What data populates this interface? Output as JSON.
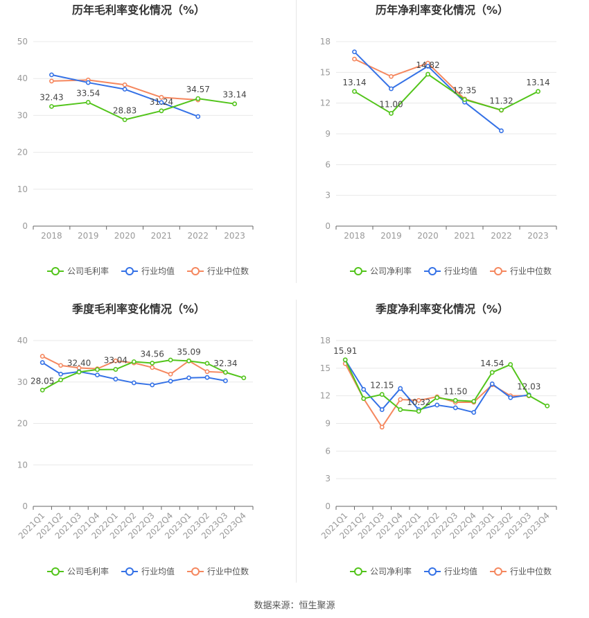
{
  "footer": {
    "source": "数据来源：恒生聚源"
  },
  "colors": {
    "company": "#52c41a",
    "industry_avg": "#3471e6",
    "industry_median": "#f5875e",
    "axis": "#666666",
    "label": "#999999",
    "grid": "#e8e8e8",
    "title": "#333333"
  },
  "chart_data": [
    {
      "type": "line",
      "title": "历年毛利率变化情况（%）",
      "categories": [
        "2018",
        "2019",
        "2020",
        "2021",
        "2022",
        "2023"
      ],
      "ylim": [
        0,
        50
      ],
      "yticks": [
        0,
        10,
        20,
        30,
        40,
        50
      ],
      "xlabel": "",
      "ylabel": "",
      "series": [
        {
          "name": "公司毛利率",
          "role": "company",
          "values": [
            32.43,
            33.54,
            28.83,
            31.24,
            34.57,
            33.14
          ],
          "labels": [
            "32.43",
            "33.54",
            "28.83",
            "31.24",
            "34.57",
            "33.14"
          ]
        },
        {
          "name": "行业均值",
          "role": "industry_avg",
          "values": [
            41.0,
            38.9,
            37.1,
            33.5,
            29.7,
            null
          ]
        },
        {
          "name": "行业中位数",
          "role": "industry_median",
          "values": [
            39.3,
            39.6,
            38.3,
            34.9,
            34.2,
            null
          ]
        }
      ],
      "legend": "bottom"
    },
    {
      "type": "line",
      "title": "历年净利率变化情况（%）",
      "categories": [
        "2018",
        "2019",
        "2020",
        "2021",
        "2022",
        "2023"
      ],
      "ylim": [
        0,
        18
      ],
      "yticks": [
        0,
        3,
        6,
        9,
        12,
        15,
        18
      ],
      "xlabel": "",
      "ylabel": "",
      "series": [
        {
          "name": "公司净利率",
          "role": "company",
          "values": [
            13.14,
            11.0,
            14.82,
            12.35,
            11.32,
            13.14
          ],
          "labels": [
            "13.14",
            "11.00",
            "14.82",
            "12.35",
            "11.32",
            "13.14"
          ]
        },
        {
          "name": "行业均值",
          "role": "industry_avg",
          "values": [
            17.0,
            13.4,
            15.6,
            12.1,
            9.3,
            null
          ]
        },
        {
          "name": "行业中位数",
          "role": "industry_median",
          "values": [
            16.3,
            14.6,
            15.9,
            12.4,
            11.3,
            null
          ]
        }
      ],
      "legend": "bottom"
    },
    {
      "type": "line",
      "title": "季度毛利率变化情况（%）",
      "categories": [
        "2021Q1",
        "2021Q2",
        "2021Q3",
        "2021Q4",
        "2022Q1",
        "2022Q2",
        "2022Q3",
        "2022Q4",
        "2023Q1",
        "2023Q2",
        "2023Q3",
        "2023Q4"
      ],
      "ylim": [
        0,
        40
      ],
      "yticks": [
        0,
        10,
        20,
        30,
        40
      ],
      "xlabel": "",
      "ylabel": "",
      "series": [
        {
          "name": "公司毛利率",
          "role": "company",
          "values": [
            28.05,
            30.5,
            32.4,
            33.0,
            33.04,
            34.9,
            34.56,
            35.3,
            35.09,
            34.5,
            32.34,
            31.0
          ],
          "labels": [
            "28.05",
            "",
            "32.40",
            "",
            "33.04",
            "",
            "34.56",
            "",
            "35.09",
            "",
            "32.34",
            ""
          ]
        },
        {
          "name": "行业均值",
          "role": "industry_avg",
          "values": [
            34.7,
            31.9,
            32.5,
            31.7,
            30.7,
            29.8,
            29.3,
            30.2,
            31.0,
            31.1,
            30.3,
            null
          ]
        },
        {
          "name": "行业中位数",
          "role": "industry_median",
          "values": [
            36.2,
            34.0,
            33.4,
            33.2,
            35.1,
            34.6,
            33.5,
            31.9,
            35.1,
            32.5,
            32.3,
            null
          ]
        }
      ],
      "legend": "bottom"
    },
    {
      "type": "line",
      "title": "季度净利率变化情况（%）",
      "categories": [
        "2021Q1",
        "2021Q2",
        "2021Q3",
        "2021Q4",
        "2022Q1",
        "2022Q2",
        "2022Q3",
        "2022Q4",
        "2023Q1",
        "2023Q2",
        "2023Q3",
        "2023Q4"
      ],
      "ylim": [
        0,
        18
      ],
      "yticks": [
        0,
        3,
        6,
        9,
        12,
        15,
        18
      ],
      "xlabel": "",
      "ylabel": "",
      "series": [
        {
          "name": "公司净利率",
          "role": "company",
          "values": [
            15.91,
            11.7,
            12.15,
            10.5,
            10.32,
            11.8,
            11.5,
            11.4,
            14.54,
            15.4,
            12.03,
            10.9
          ],
          "labels": [
            "15.91",
            "",
            "12.15",
            "",
            "10.32",
            "",
            "11.50",
            "",
            "14.54",
            "",
            "12.03",
            ""
          ]
        },
        {
          "name": "行业均值",
          "role": "industry_avg",
          "values": [
            15.9,
            12.7,
            10.5,
            12.8,
            10.5,
            11.0,
            10.7,
            10.2,
            13.3,
            11.8,
            12.1,
            null
          ]
        },
        {
          "name": "行业中位数",
          "role": "industry_median",
          "values": [
            15.5,
            11.7,
            8.6,
            11.6,
            11.5,
            11.9,
            11.3,
            11.3,
            13.2,
            12.0,
            12.0,
            null
          ]
        }
      ],
      "legend": "bottom"
    }
  ]
}
